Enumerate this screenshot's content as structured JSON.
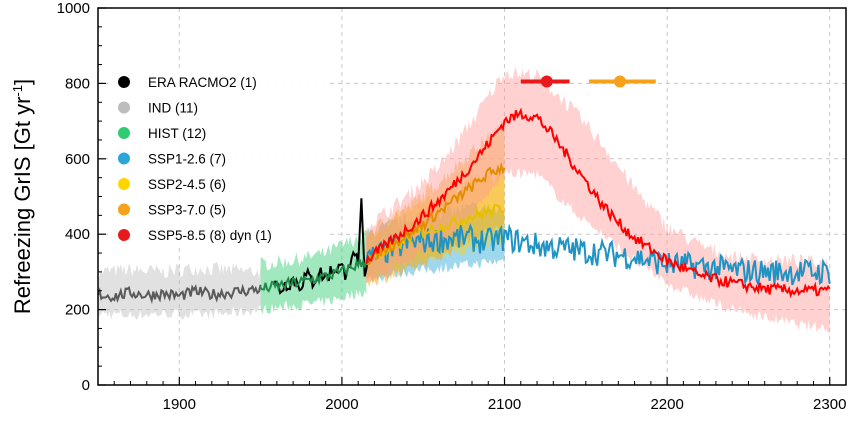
{
  "chart_data": {
    "type": "line",
    "xlabel": "",
    "ylabel": "Refreezing GrIS  [Gt yr",
    "ylabel_sup": "-1",
    "ylabel_close": "]",
    "xlim": [
      1850,
      2310
    ],
    "ylim": [
      0,
      1000
    ],
    "xticks": [
      1900,
      2000,
      2100,
      2200,
      2300
    ],
    "yticks": [
      0,
      200,
      400,
      600,
      800,
      1000
    ],
    "grid": true,
    "legend_position": "top-left",
    "series": [
      {
        "name": "ERA RACMO2 (1)",
        "color": "#000000",
        "points": [
          [
            1958,
            270
          ],
          [
            1962,
            255
          ],
          [
            1966,
            270
          ],
          [
            1970,
            280
          ],
          [
            1974,
            265
          ],
          [
            1978,
            290
          ],
          [
            1982,
            275
          ],
          [
            1986,
            300
          ],
          [
            1990,
            285
          ],
          [
            1994,
            305
          ],
          [
            1998,
            315
          ],
          [
            2002,
            300
          ],
          [
            2004,
            330
          ],
          [
            2006,
            320
          ],
          [
            2008,
            360
          ],
          [
            2010,
            300
          ],
          [
            2012,
            480
          ],
          [
            2014,
            280
          ],
          [
            2016,
            320
          ]
        ]
      },
      {
        "name": "IND (11)",
        "color": "#bdbdbd",
        "dark": "#5a5a5a",
        "points": [
          [
            1850,
            240
          ],
          [
            1860,
            235
          ],
          [
            1870,
            245
          ],
          [
            1880,
            238
          ],
          [
            1890,
            242
          ],
          [
            1900,
            236
          ],
          [
            1910,
            248
          ],
          [
            1920,
            240
          ],
          [
            1930,
            245
          ],
          [
            1940,
            250
          ],
          [
            1950,
            255
          ]
        ],
        "band": [
          [
            1850,
            190,
            300
          ],
          [
            1870,
            185,
            305
          ],
          [
            1890,
            190,
            300
          ],
          [
            1910,
            185,
            310
          ],
          [
            1930,
            190,
            305
          ],
          [
            1950,
            200,
            300
          ]
        ]
      },
      {
        "name": "HIST (12)",
        "color": "#2ecc71",
        "dark": "#218c4a",
        "points": [
          [
            1950,
            255
          ],
          [
            1960,
            262
          ],
          [
            1970,
            270
          ],
          [
            1980,
            278
          ],
          [
            1990,
            288
          ],
          [
            2000,
            300
          ],
          [
            2010,
            320
          ],
          [
            2015,
            330
          ]
        ],
        "band": [
          [
            1950,
            200,
            320
          ],
          [
            1970,
            210,
            330
          ],
          [
            1990,
            220,
            350
          ],
          [
            2015,
            250,
            400
          ]
        ]
      },
      {
        "name": "SSP1-2.6 (7)",
        "color": "#2aa7d8",
        "dark": "#1f93c4",
        "points": [
          [
            2015,
            330
          ],
          [
            2030,
            360
          ],
          [
            2045,
            380
          ],
          [
            2060,
            385
          ],
          [
            2075,
            390
          ],
          [
            2090,
            380
          ],
          [
            2100,
            390
          ],
          [
            2120,
            370
          ],
          [
            2140,
            360
          ],
          [
            2160,
            350
          ],
          [
            2180,
            340
          ],
          [
            2200,
            320
          ],
          [
            2220,
            315
          ],
          [
            2240,
            305
          ],
          [
            2260,
            300
          ],
          [
            2280,
            300
          ],
          [
            2300,
            300
          ]
        ],
        "band": [
          [
            2015,
            280,
            400
          ],
          [
            2040,
            300,
            440
          ],
          [
            2060,
            310,
            460
          ],
          [
            2080,
            320,
            470
          ],
          [
            2100,
            330,
            460
          ]
        ]
      },
      {
        "name": "SSP2-4.5 (6)",
        "color": "#ffd500",
        "dark": "#e6c000",
        "points": [
          [
            2015,
            330
          ],
          [
            2030,
            360
          ],
          [
            2045,
            400
          ],
          [
            2060,
            420
          ],
          [
            2075,
            440
          ],
          [
            2090,
            460
          ],
          [
            2100,
            470
          ]
        ],
        "band": [
          [
            2015,
            280,
            400
          ],
          [
            2040,
            320,
            460
          ],
          [
            2060,
            340,
            500
          ],
          [
            2080,
            360,
            540
          ],
          [
            2100,
            380,
            560
          ]
        ]
      },
      {
        "name": "SSP3-7.0 (5)",
        "color": "#f5a11a",
        "dark": "#e38d00",
        "points": [
          [
            2015,
            330
          ],
          [
            2030,
            370
          ],
          [
            2045,
            410
          ],
          [
            2060,
            460
          ],
          [
            2075,
            510
          ],
          [
            2090,
            560
          ],
          [
            2100,
            580
          ]
        ],
        "band": [
          [
            2015,
            270,
            400
          ],
          [
            2040,
            300,
            470
          ],
          [
            2060,
            340,
            540
          ],
          [
            2080,
            390,
            620
          ],
          [
            2100,
            420,
            690
          ]
        ]
      },
      {
        "name": "SSP5-8.5 (8) dyn (1)",
        "color": "#ff9a99",
        "dark": "#ff0000",
        "points": [
          [
            2015,
            330
          ],
          [
            2030,
            380
          ],
          [
            2045,
            430
          ],
          [
            2060,
            490
          ],
          [
            2075,
            560
          ],
          [
            2090,
            640
          ],
          [
            2100,
            700
          ],
          [
            2110,
            720
          ],
          [
            2120,
            710
          ],
          [
            2130,
            660
          ],
          [
            2140,
            600
          ],
          [
            2150,
            540
          ],
          [
            2160,
            480
          ],
          [
            2170,
            430
          ],
          [
            2180,
            390
          ],
          [
            2190,
            360
          ],
          [
            2200,
            330
          ],
          [
            2220,
            290
          ],
          [
            2240,
            270
          ],
          [
            2260,
            255
          ],
          [
            2280,
            250
          ],
          [
            2300,
            250
          ]
        ],
        "band": [
          [
            2015,
            270,
            420
          ],
          [
            2040,
            330,
            500
          ],
          [
            2060,
            380,
            580
          ],
          [
            2080,
            450,
            700
          ],
          [
            2100,
            560,
            830
          ],
          [
            2120,
            560,
            820
          ],
          [
            2140,
            470,
            740
          ],
          [
            2160,
            400,
            640
          ],
          [
            2180,
            330,
            520
          ],
          [
            2200,
            270,
            420
          ],
          [
            2220,
            230,
            370
          ],
          [
            2240,
            200,
            340
          ],
          [
            2260,
            180,
            330
          ],
          [
            2280,
            160,
            330
          ],
          [
            2300,
            150,
            320
          ]
        ]
      }
    ],
    "markers": [
      {
        "color": "#e8191b",
        "x": 2126,
        "xmin": 2110,
        "xmax": 2140,
        "y": 805
      },
      {
        "color": "#f5a11a",
        "x": 2171,
        "xmin": 2152,
        "xmax": 2193,
        "y": 805
      }
    ],
    "legend_items": [
      {
        "label": "ERA RACMO2 (1)",
        "color": "#000000"
      },
      {
        "label": "IND (11)",
        "color": "#bdbdbd"
      },
      {
        "label": "HIST (12)",
        "color": "#2ecc71"
      },
      {
        "label": "SSP1-2.6 (7)",
        "color": "#2aa7d8"
      },
      {
        "label": "SSP2-4.5 (6)",
        "color": "#ffd500"
      },
      {
        "label": "SSP3-7.0 (5)",
        "color": "#f5a11a"
      },
      {
        "label": "SSP5-8.5 (8) dyn (1)",
        "color": "#e8191b"
      }
    ]
  }
}
